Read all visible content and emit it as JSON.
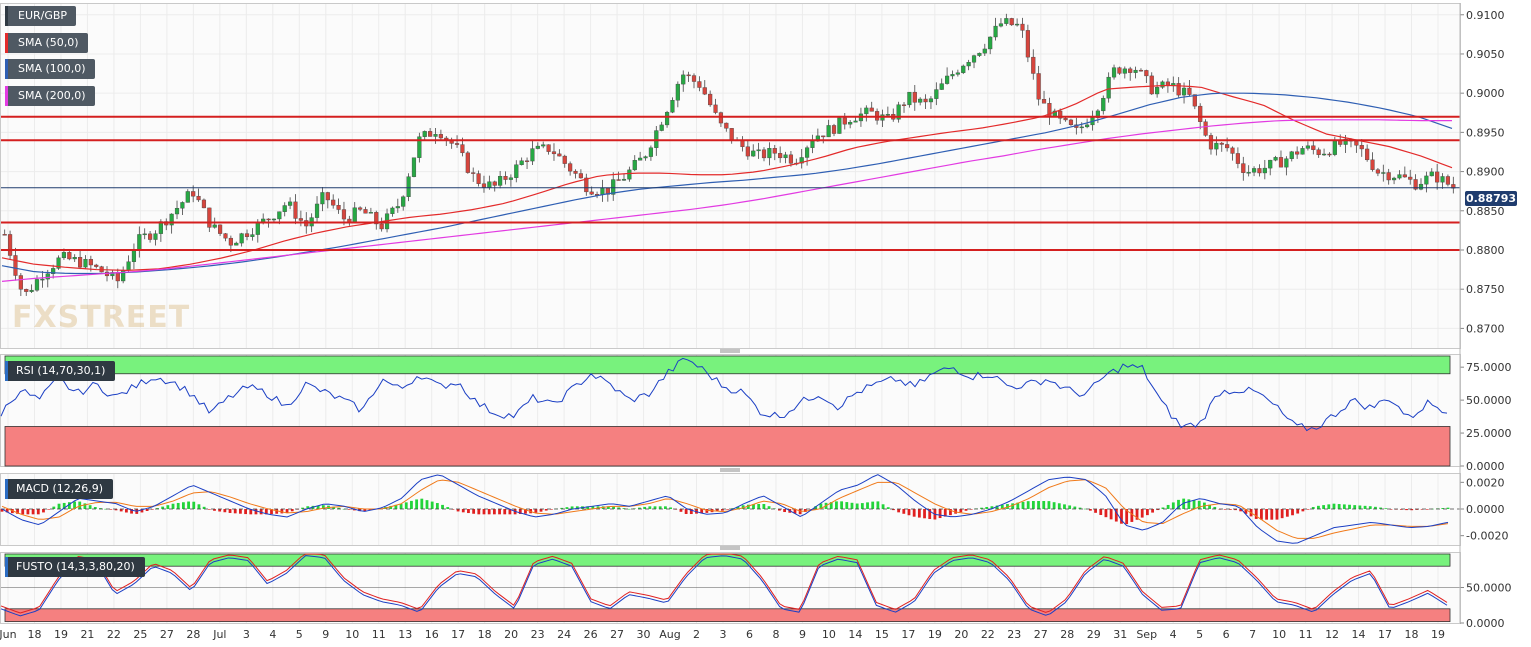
{
  "instrument": "EUR/GBP",
  "watermark": "FXSTREET",
  "legend": [
    {
      "label": "EUR/GBP",
      "color": "#2f3942"
    },
    {
      "label": "SMA (50,0)",
      "color": "#e32b2b"
    },
    {
      "label": "SMA (100,0)",
      "color": "#2f5fb3"
    },
    {
      "label": "SMA (200,0)",
      "color": "#e23be2"
    }
  ],
  "last_price": "0.88793",
  "chart_data": [
    {
      "type": "candlestick",
      "title": "EUR/GBP",
      "x_tick_labels": [
        "Jun",
        "18",
        "19",
        "21",
        "22",
        "25",
        "27",
        "28",
        "Jul",
        "3",
        "4",
        "5",
        "9",
        "10",
        "11",
        "13",
        "16",
        "17",
        "18",
        "20",
        "23",
        "24",
        "26",
        "27",
        "30",
        "Aug",
        "2",
        "3",
        "6",
        "8",
        "9",
        "10",
        "14",
        "15",
        "17",
        "19",
        "20",
        "22",
        "23",
        "27",
        "28",
        "29",
        "31",
        "Sep",
        "4",
        "5",
        "6",
        "7",
        "10",
        "11",
        "12",
        "14",
        "17",
        "18",
        "19"
      ],
      "y_tick_labels": [
        "0.9100",
        "0.9050",
        "0.9000",
        "0.8950",
        "0.8900",
        "0.8850",
        "0.8800",
        "0.8750",
        "0.8700"
      ],
      "ylim": [
        0.8675,
        0.9115
      ],
      "close_anchors": [
        0.882,
        0.874,
        0.877,
        0.879,
        0.8785,
        0.8775,
        0.876,
        0.881,
        0.8825,
        0.885,
        0.8875,
        0.883,
        0.881,
        0.8825,
        0.884,
        0.886,
        0.883,
        0.887,
        0.884,
        0.885,
        0.883,
        0.886,
        0.894,
        0.8955,
        0.893,
        0.889,
        0.888,
        0.89,
        0.8925,
        0.893,
        0.8905,
        0.888,
        0.8875,
        0.8895,
        0.892,
        0.897,
        0.9025,
        0.901,
        0.896,
        0.8935,
        0.892,
        0.8925,
        0.8915,
        0.8945,
        0.8955,
        0.897,
        0.8975,
        0.8965,
        0.8995,
        0.8985,
        0.9015,
        0.904,
        0.906,
        0.909,
        0.9085,
        0.899,
        0.8965,
        0.895,
        0.898,
        0.903,
        0.9035,
        0.9005,
        0.901,
        0.8995,
        0.8935,
        0.893,
        0.89,
        0.8905,
        0.8915,
        0.893,
        0.8925,
        0.8935,
        0.893,
        0.89,
        0.8895,
        0.8885,
        0.8895,
        0.888
      ],
      "horizontal_levels": [
        0.897,
        0.894,
        0.8835,
        0.88
      ],
      "moving_averages": [
        {
          "name": "SMA (50,0)",
          "color": "#e32b2b",
          "anchors": [
            0.879,
            0.8782,
            0.8778,
            0.8775,
            0.8774,
            0.8776,
            0.8782,
            0.879,
            0.88,
            0.8812,
            0.8822,
            0.883,
            0.8836,
            0.8842,
            0.8846,
            0.8852,
            0.886,
            0.8872,
            0.8885,
            0.8895,
            0.8898,
            0.8898,
            0.8896,
            0.8896,
            0.89,
            0.8908,
            0.8918,
            0.893,
            0.8938,
            0.8944,
            0.895,
            0.8955,
            0.8962,
            0.897,
            0.8985,
            0.9005,
            0.9008,
            0.901,
            0.9008,
            0.8996,
            0.8985,
            0.8965,
            0.8948,
            0.894,
            0.8932,
            0.892,
            0.8905
          ]
        },
        {
          "name": "SMA (100,0)",
          "color": "#2f5fb3",
          "anchors": [
            0.878,
            0.8772,
            0.877,
            0.877,
            0.8772,
            0.8775,
            0.8779,
            0.8784,
            0.879,
            0.8797,
            0.8804,
            0.8812,
            0.882,
            0.8828,
            0.8837,
            0.8846,
            0.8855,
            0.8864,
            0.8872,
            0.8878,
            0.8882,
            0.8886,
            0.8889,
            0.8893,
            0.8897,
            0.8903,
            0.891,
            0.8918,
            0.8926,
            0.8934,
            0.8942,
            0.895,
            0.896,
            0.8972,
            0.8985,
            0.8995,
            0.9,
            0.9,
            0.8998,
            0.8994,
            0.8988,
            0.898,
            0.897,
            0.8955
          ]
        },
        {
          "name": "SMA (200,0)",
          "color": "#e23be2",
          "anchors": [
            0.876,
            0.8764,
            0.8767,
            0.877,
            0.8773,
            0.8777,
            0.8782,
            0.8787,
            0.8792,
            0.8797,
            0.8802,
            0.8807,
            0.8812,
            0.8817,
            0.8822,
            0.8827,
            0.8832,
            0.8837,
            0.8842,
            0.8847,
            0.8852,
            0.8858,
            0.8865,
            0.8873,
            0.8881,
            0.8889,
            0.8897,
            0.8905,
            0.8913,
            0.892,
            0.8928,
            0.8935,
            0.8942,
            0.8948,
            0.8953,
            0.8958,
            0.8962,
            0.8965,
            0.8966,
            0.8966,
            0.8966,
            0.8965,
            0.8965
          ]
        }
      ]
    },
    {
      "type": "line",
      "title": "RSI (14,70,30,1)",
      "y_tick_labels": [
        "75.0000",
        "50.0000",
        "25.0000",
        "0.0000"
      ],
      "ylim": [
        0,
        85
      ],
      "overbought": 70,
      "oversold": 30,
      "anchors": [
        40,
        58,
        50,
        66,
        55,
        62,
        52,
        60,
        68,
        64,
        55,
        40,
        52,
        60,
        55,
        45,
        62,
        56,
        50,
        42,
        66,
        58,
        70,
        60,
        64,
        48,
        40,
        38,
        52,
        46,
        58,
        70,
        62,
        50,
        54,
        70,
        82,
        72,
        60,
        56,
        40,
        38,
        48,
        55,
        45,
        56,
        62,
        66,
        60,
        70,
        75,
        68,
        70,
        60,
        62,
        66,
        58,
        54,
        68,
        76,
        74,
        48,
        30,
        32,
        56,
        58,
        56,
        45,
        30,
        28,
        38,
        50,
        44,
        52,
        36,
        48,
        42
      ]
    },
    {
      "type": "line",
      "title": "MACD (12,26,9)",
      "y_tick_labels": [
        "0.0020",
        "0.0000",
        "-0.0020"
      ],
      "ylim": [
        -0.0027,
        0.0027
      ],
      "macd_anchors": [
        0.0,
        -0.0008,
        -0.0012,
        -0.0002,
        0.0008,
        0.0006,
        0.0004,
        -0.0002,
        0.0002,
        0.001,
        0.0018,
        0.0012,
        0.0006,
        0.0,
        -0.0004,
        -0.0006,
        0.0,
        0.0004,
        0.0002,
        -0.0002,
        0.0001,
        0.0008,
        0.0022,
        0.0026,
        0.0018,
        0.001,
        0.0004,
        -0.0002,
        -0.0006,
        -0.0004,
        0.0,
        0.0002,
        0.0004,
        0.0002,
        0.0006,
        0.001,
        0.0,
        -0.0004,
        -0.0003,
        0.0004,
        0.001,
        0.0002,
        -0.0006,
        0.0004,
        0.0014,
        0.0018,
        0.0026,
        0.0018,
        0.0006,
        -0.0004,
        -0.0006,
        -0.0004,
        0.0,
        0.0006,
        0.0014,
        0.0022,
        0.0024,
        0.0022,
        0.001,
        -0.0012,
        -0.0016,
        -0.001,
        0.0004,
        0.0008,
        0.0004,
        0.0002,
        -0.0014,
        -0.0024,
        -0.0026,
        -0.002,
        -0.0014,
        -0.0012,
        -0.001,
        -0.0012,
        -0.0014,
        -0.0013,
        -0.001
      ],
      "signal_anchors": [
        0.0002,
        -0.0004,
        -0.0008,
        -0.0006,
        0.0002,
        0.0005,
        0.0005,
        0.0002,
        0.0002,
        0.0006,
        0.0012,
        0.0013,
        0.0009,
        0.0004,
        0.0,
        -0.0003,
        -0.0002,
        0.0001,
        0.0002,
        0.0,
        0.0,
        0.0004,
        0.0014,
        0.0022,
        0.002,
        0.0014,
        0.0008,
        0.0002,
        -0.0003,
        -0.0004,
        -0.0002,
        0.0,
        0.0002,
        0.0002,
        0.0004,
        0.0008,
        0.0004,
        -0.0001,
        -0.0002,
        0.0001,
        0.0006,
        0.0004,
        -0.0002,
        0.0,
        0.0008,
        0.0014,
        0.002,
        0.002,
        0.0012,
        0.0004,
        -0.0002,
        -0.0004,
        -0.0002,
        0.0002,
        0.0008,
        0.0016,
        0.0021,
        0.0022,
        0.0016,
        0.0,
        -0.001,
        -0.0011,
        -0.0004,
        0.0002,
        0.0004,
        0.0003,
        -0.0006,
        -0.0016,
        -0.0022,
        -0.0022,
        -0.0018,
        -0.0015,
        -0.0012,
        -0.0012,
        -0.0013,
        -0.0013,
        -0.0011
      ]
    },
    {
      "type": "line",
      "title": "FUSTO (14,3,3,80,20)",
      "y_tick_labels": [
        "50.0000",
        "0.0000"
      ],
      "ylim": [
        0,
        100
      ],
      "overbought": 80,
      "oversold": 20,
      "anchors": [
        20,
        10,
        18,
        60,
        90,
        85,
        40,
        55,
        80,
        70,
        45,
        85,
        92,
        88,
        55,
        70,
        95,
        92,
        60,
        40,
        30,
        25,
        15,
        50,
        70,
        65,
        40,
        20,
        82,
        90,
        80,
        30,
        20,
        40,
        35,
        28,
        65,
        92,
        95,
        90,
        60,
        20,
        15,
        80,
        90,
        85,
        25,
        15,
        30,
        70,
        88,
        92,
        85,
        60,
        20,
        10,
        30,
        70,
        90,
        80,
        40,
        18,
        20,
        85,
        92,
        85,
        60,
        30,
        25,
        15,
        40,
        60,
        70,
        20,
        30,
        42,
        25
      ]
    }
  ]
}
